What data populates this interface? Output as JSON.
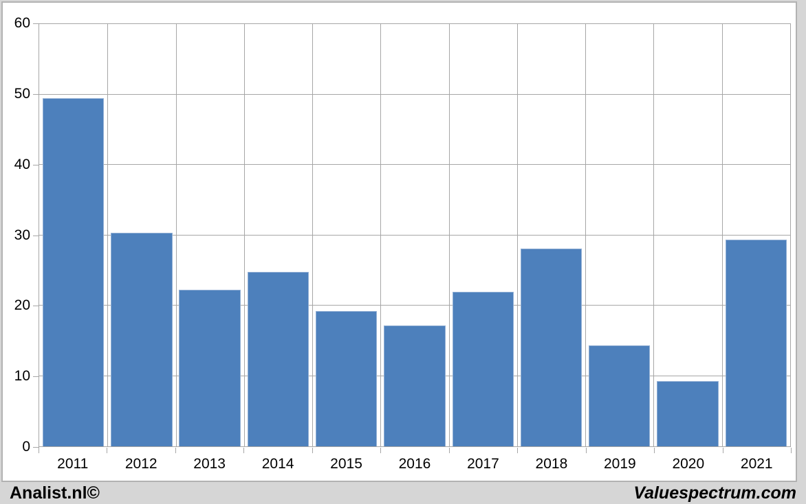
{
  "chart_data": {
    "type": "bar",
    "title": "",
    "xlabel": "",
    "ylabel": "",
    "categories": [
      "2011",
      "2012",
      "2013",
      "2014",
      "2015",
      "2016",
      "2017",
      "2018",
      "2019",
      "2020",
      "2021"
    ],
    "values": [
      49.5,
      30.3,
      22.2,
      24.8,
      19.2,
      17.2,
      22.0,
      28.1,
      14.3,
      9.3,
      29.4
    ],
    "ylim": [
      0,
      60
    ],
    "yticks": [
      0,
      10,
      20,
      30,
      40,
      50,
      60
    ],
    "grid": true,
    "legend": "none",
    "bar_color": "#4d80bc",
    "bar_border_color": "#94b1d5",
    "gridline_color": "#a6a6a6",
    "plot_background": "#ffffff",
    "page_background": "#d6d6d6"
  },
  "footer": {
    "left": "Analist.nl©",
    "right": "Valuespectrum.com"
  }
}
